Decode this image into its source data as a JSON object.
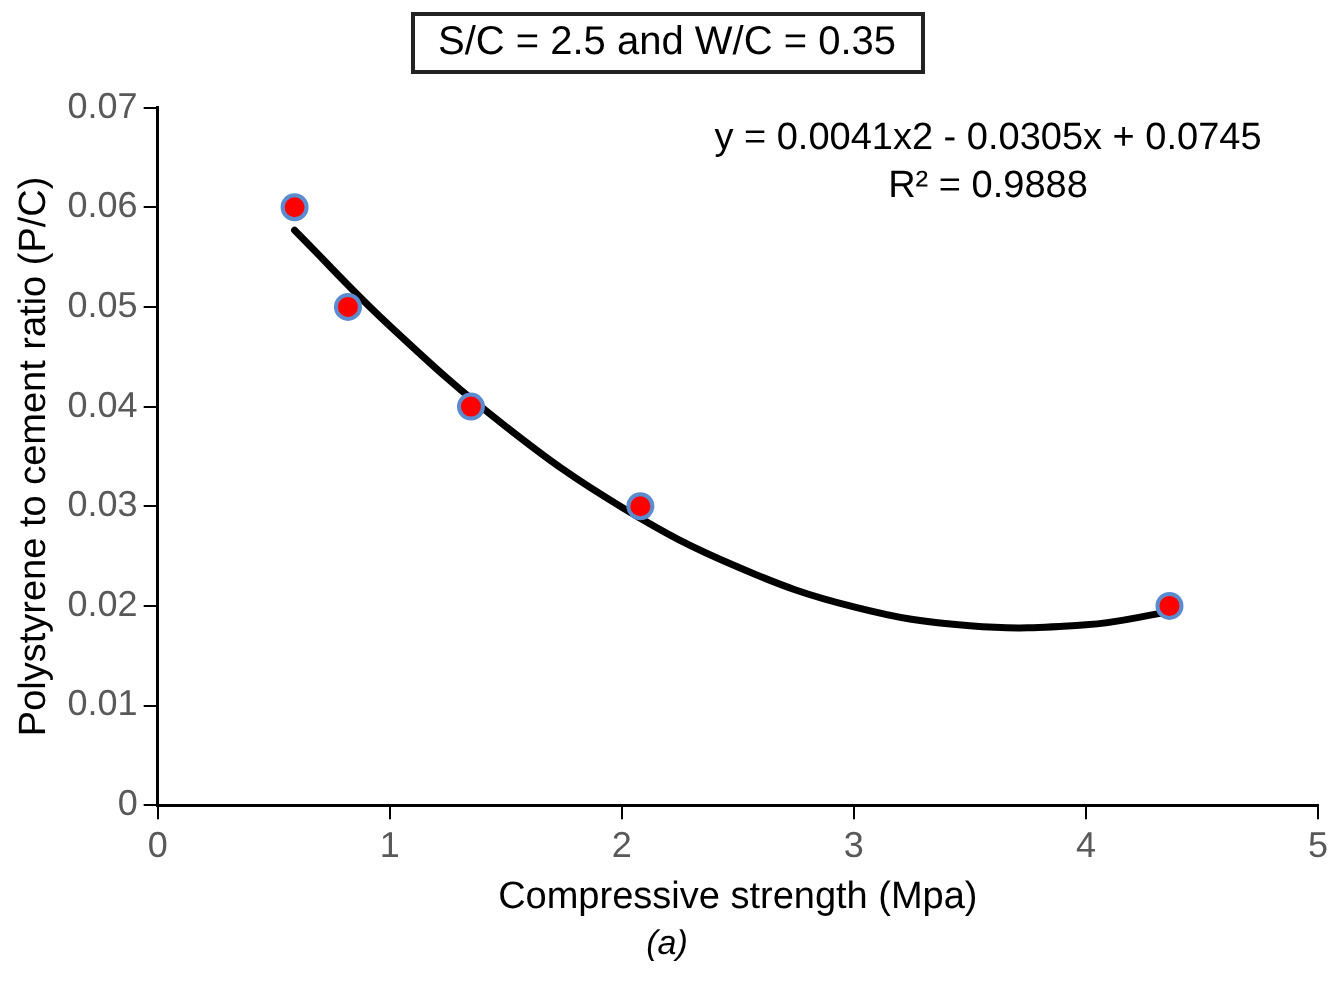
{
  "chart_data": {
    "type": "scatter",
    "title": "S/C = 2.5 and W/C = 0.35",
    "xlabel": "Compressive strength (Mpa)",
    "ylabel": "Polystyrene to cement ratio (P/C)",
    "annotations": [
      "y = 0.0041x2 - 0.0305x + 0.0745",
      "R² = 0.9888",
      "(a)"
    ],
    "series": [
      {
        "color": "#ff0000",
        "marker": "circle",
        "x": [
          0.59,
          0.82,
          1.35,
          2.08,
          4.36
        ],
        "values": [
          0.06,
          0.05,
          0.04,
          0.03,
          0.02
        ]
      },
      {
        "type": "line",
        "color": "#000000",
        "marker": "none",
        "x": [
          0.59,
          1,
          1.5,
          2,
          2.5,
          3,
          3.5,
          4,
          4.36
        ],
        "values": [
          0.0577,
          0.0481,
          0.038,
          0.0299,
          0.0239,
          0.0199,
          0.018,
          0.0181,
          0.0194
        ]
      }
    ],
    "xlim": [
      0,
      5
    ],
    "xticks": [
      0,
      1,
      2,
      3,
      4,
      5
    ],
    "ylim": [
      0,
      0.07
    ],
    "yticks": [
      0,
      0.01,
      0.02,
      0.03,
      0.04,
      0.05,
      0.06,
      0.07
    ],
    "grid": false,
    "legend": false
  }
}
